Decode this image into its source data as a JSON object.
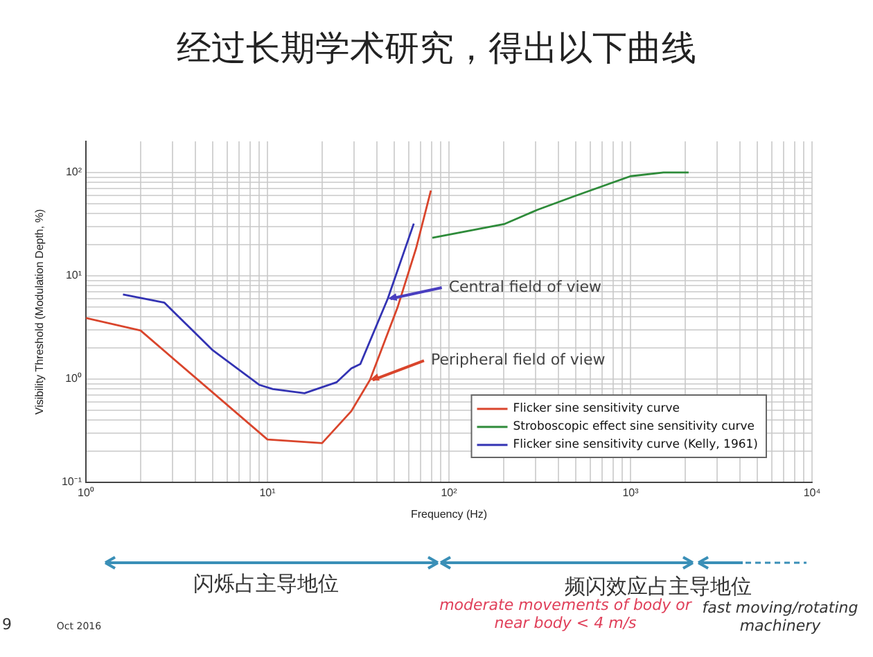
{
  "chart_data": {
    "type": "line",
    "title": "经过长期学术研究，得出以下曲线",
    "xlabel": "Frequency (Hz)",
    "ylabel": "Visibility Threshold (Modulation Depth, %)",
    "series": [
      {
        "name": "Flicker sine sensitivity curve",
        "color": "#d9452c",
        "x": [
          1,
          2,
          10,
          20,
          29,
          36.7,
          52,
          66,
          79.5
        ],
        "values": [
          3.9,
          2.95,
          0.26,
          0.24,
          0.49,
          0.98,
          4.9,
          18.6,
          67
        ]
      },
      {
        "name": "Stroboscopic effect sine sensitivity curve",
        "color": "#2e8b3a",
        "x": [
          81,
          203,
          307,
          492,
          1000,
          1520,
          2090
        ],
        "values": [
          23.3,
          31.8,
          43.5,
          59,
          92,
          100,
          100
        ]
      },
      {
        "name": "Flicker sine sensitivity curve (Kelly, 1961)",
        "color": "#3333b3",
        "x": [
          1.6,
          2.7,
          5,
          9,
          10.7,
          16,
          24,
          29,
          32.5,
          46,
          64
        ],
        "values": [
          6.6,
          5.5,
          1.9,
          0.88,
          0.8,
          0.73,
          0.93,
          1.27,
          1.4,
          6.0,
          32
        ]
      }
    ],
    "xlim": [
      1,
      10000
    ],
    "ylim": [
      0.1,
      200
    ],
    "xticks": [
      {
        "value": 1,
        "label": "10⁰"
      },
      {
        "value": 2,
        "label": null
      },
      {
        "value": 3,
        "label": null
      },
      {
        "value": 4,
        "label": null
      },
      {
        "value": 5,
        "label": null
      },
      {
        "value": 6,
        "label": null
      },
      {
        "value": 7,
        "label": null
      },
      {
        "value": 8,
        "label": null
      },
      {
        "value": 9,
        "label": null
      },
      {
        "value": 10,
        "label": "10¹"
      },
      {
        "value": 20,
        "label": null
      },
      {
        "value": 30,
        "label": null
      },
      {
        "value": 40,
        "label": null
      },
      {
        "value": 50,
        "label": null
      },
      {
        "value": 60,
        "label": null
      },
      {
        "value": 70,
        "label": null
      },
      {
        "value": 80,
        "label": null
      },
      {
        "value": 90,
        "label": null
      },
      {
        "value": 100,
        "label": "10²"
      },
      {
        "value": 200,
        "label": null
      },
      {
        "value": 300,
        "label": null
      },
      {
        "value": 400,
        "label": null
      },
      {
        "value": 500,
        "label": null
      },
      {
        "value": 600,
        "label": null
      },
      {
        "value": 700,
        "label": null
      },
      {
        "value": 800,
        "label": null
      },
      {
        "value": 900,
        "label": null
      },
      {
        "value": 1000,
        "label": "10³"
      },
      {
        "value": 2000,
        "label": null
      },
      {
        "value": 3000,
        "label": null
      },
      {
        "value": 4000,
        "label": null
      },
      {
        "value": 5000,
        "label": null
      },
      {
        "value": 6000,
        "label": null
      },
      {
        "value": 7000,
        "label": null
      },
      {
        "value": 8000,
        "label": null
      },
      {
        "value": 9000,
        "label": null
      },
      {
        "value": 10000,
        "label": "10⁴"
      }
    ],
    "yticks": [
      {
        "value": 0.1,
        "label": "10⁻¹"
      },
      {
        "value": 0.2,
        "label": null
      },
      {
        "value": 0.3,
        "label": null
      },
      {
        "value": 0.4,
        "label": null
      },
      {
        "value": 0.5,
        "label": null
      },
      {
        "value": 0.6,
        "label": null
      },
      {
        "value": 0.7,
        "label": null
      },
      {
        "value": 0.8,
        "label": null
      },
      {
        "value": 0.9,
        "label": null
      },
      {
        "value": 1,
        "label": "10⁰"
      },
      {
        "value": 2,
        "label": null
      },
      {
        "value": 3,
        "label": null
      },
      {
        "value": 4,
        "label": null
      },
      {
        "value": 5,
        "label": null
      },
      {
        "value": 6,
        "label": null
      },
      {
        "value": 7,
        "label": null
      },
      {
        "value": 8,
        "label": null
      },
      {
        "value": 9,
        "label": null
      },
      {
        "value": 10,
        "label": "10¹"
      },
      {
        "value": 20,
        "label": null
      },
      {
        "value": 30,
        "label": null
      },
      {
        "value": 40,
        "label": null
      },
      {
        "value": 50,
        "label": null
      },
      {
        "value": 60,
        "label": null
      },
      {
        "value": 70,
        "label": null
      },
      {
        "value": 80,
        "label": null
      },
      {
        "value": 90,
        "label": null
      },
      {
        "value": 100,
        "label": "10²"
      }
    ],
    "log": "xy",
    "grid": true,
    "legend": "bottom right",
    "marker": "none",
    "line_style": "solid",
    "annotations": [
      {
        "text": "Central field of view",
        "x": 46,
        "y": 6.0
      },
      {
        "text": "Peripheral field of view",
        "x": 36.7,
        "y": 0.98
      },
      "闪烁占主导地位",
      "频闪效应占主导地位",
      "moderate movements of body or near body < 4 m/s",
      "fast moving/rotating machinery",
      "Oct 2016",
      "9"
    ]
  }
}
